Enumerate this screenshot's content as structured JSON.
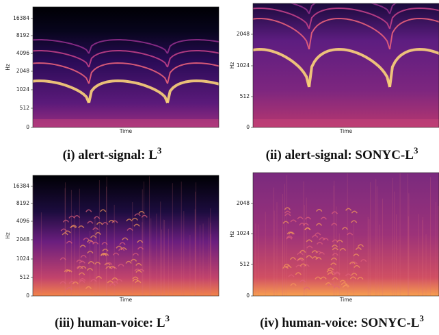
{
  "figure": {
    "panels": [
      {
        "caption": "(i) alert-signal: L",
        "caption_sup": "3",
        "y_label": "Hz",
        "x_label": "Time",
        "yticks": [
          "16384",
          "8192",
          "4096",
          "2048",
          "1024",
          "512",
          "0"
        ]
      },
      {
        "caption": "(ii) alert-signal: SONYC-L",
        "caption_sup": "3",
        "y_label": "Hz",
        "x_label": "Time",
        "yticks": [
          "2048",
          "1024",
          "512",
          "0"
        ]
      },
      {
        "caption": "(iii) human-voice: L",
        "caption_sup": "3",
        "y_label": "Hz",
        "x_label": "Time",
        "yticks": [
          "16384",
          "8192",
          "4096",
          "2048",
          "1024",
          "512",
          "0"
        ]
      },
      {
        "caption": "(iv) human-voice: SONYC-L",
        "caption_sup": "3",
        "y_label": "Hz",
        "x_label": "Time",
        "yticks": [
          "2048",
          "1024",
          "512",
          "0"
        ]
      }
    ]
  }
}
